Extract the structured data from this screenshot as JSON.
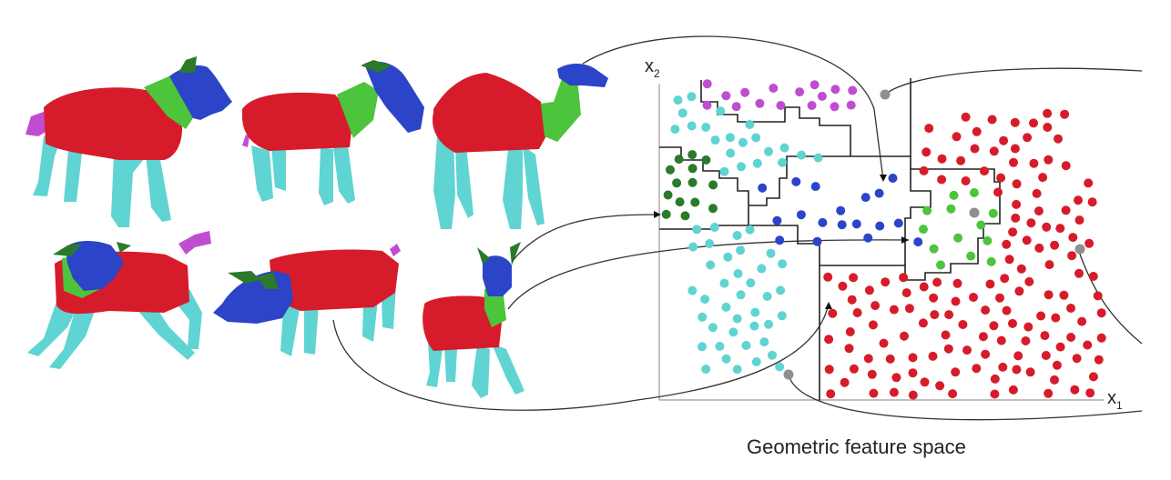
{
  "caption": "Geometric feature space",
  "axes": {
    "x_label": "x",
    "x_sub": "1",
    "y_label": "x",
    "y_sub": "2"
  },
  "colors": {
    "head": "#2b44c8",
    "neck": "#4cc43c",
    "torso": "#d61c2a",
    "leg": "#5fd4d2",
    "tail": "#c04dd1",
    "ear": "#2a7a2a",
    "unlabeled": "#8f8f8f",
    "background": "#ffffff"
  },
  "shapes": [
    {
      "name": "wolf",
      "parts": [
        "head",
        "neck",
        "torso",
        "leg",
        "tail"
      ]
    },
    {
      "name": "horse",
      "parts": [
        "head",
        "neck",
        "torso",
        "leg",
        "tail"
      ]
    },
    {
      "name": "camel",
      "parts": [
        "head",
        "neck",
        "torso",
        "leg"
      ]
    },
    {
      "name": "goat",
      "parts": [
        "head",
        "neck",
        "torso",
        "leg",
        "tail"
      ]
    },
    {
      "name": "pig",
      "parts": [
        "head",
        "torso",
        "leg",
        "tail"
      ]
    },
    {
      "name": "deer",
      "parts": [
        "head",
        "neck",
        "torso",
        "leg"
      ]
    }
  ],
  "feature_clusters": [
    {
      "label": "tail",
      "color": "#c04dd1",
      "point_count": 16
    },
    {
      "label": "leg",
      "color": "#5fd4d2",
      "point_count": 60
    },
    {
      "label": "ear",
      "color": "#2a7a2a",
      "point_count": 14
    },
    {
      "label": "head",
      "color": "#2b44c8",
      "point_count": 18
    },
    {
      "label": "neck",
      "color": "#4cc43c",
      "point_count": 13
    },
    {
      "label": "torso",
      "color": "#d61c2a",
      "point_count": 150
    },
    {
      "label": "unlabeled",
      "color": "#8f8f8f",
      "point_count": 4
    }
  ]
}
